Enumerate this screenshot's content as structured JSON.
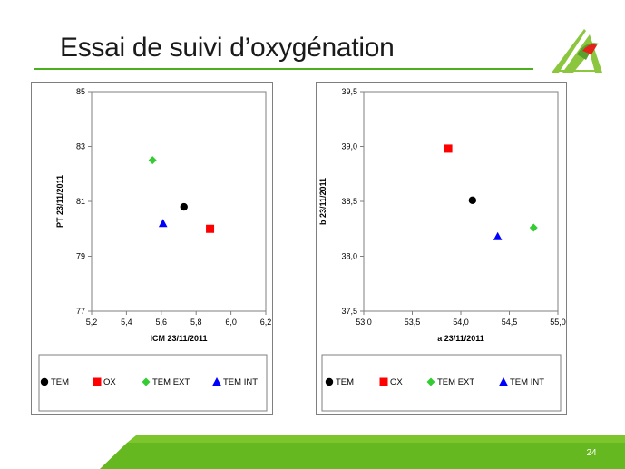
{
  "slide": {
    "title": "Essai de suivi d’oxygénation",
    "page_number": "24",
    "colors": {
      "accent_green": "#4caf1f",
      "logo_green": "#8cc63f",
      "logo_red": "#e2231a"
    }
  },
  "chart_data": [
    {
      "type": "scatter",
      "xlabel": "ICM 23/11/2011",
      "ylabel": "PT 23/11/2011",
      "xlim": [
        5.2,
        6.2
      ],
      "ylim": [
        77,
        85
      ],
      "x_ticks": [
        "5,2",
        "5,4",
        "5,6",
        "5,8",
        "6,0",
        "6,2"
      ],
      "y_ticks": [
        "77",
        "79",
        "81",
        "83",
        "85"
      ],
      "legend_position": "bottom",
      "series": [
        {
          "name": "TEM",
          "marker": "circle",
          "color": "#000000",
          "x": 5.73,
          "y": 80.8
        },
        {
          "name": "OX",
          "marker": "square",
          "color": "#ff0000",
          "x": 5.88,
          "y": 80.0
        },
        {
          "name": "TEM EXT",
          "marker": "diamond",
          "color": "#33cc33",
          "x": 5.55,
          "y": 82.5
        },
        {
          "name": "TEM INT",
          "marker": "triangle",
          "color": "#0000ff",
          "x": 5.61,
          "y": 80.2
        }
      ]
    },
    {
      "type": "scatter",
      "xlabel": "a 23/11/2011",
      "ylabel": "b 23/11/2011",
      "xlim": [
        53.0,
        55.0
      ],
      "ylim": [
        37.5,
        39.5
      ],
      "x_ticks": [
        "53,0",
        "53,5",
        "54,0",
        "54,5",
        "55,0"
      ],
      "y_ticks": [
        "37,5",
        "38,0",
        "38,5",
        "39,0",
        "39,5"
      ],
      "legend_position": "bottom",
      "series": [
        {
          "name": "TEM",
          "marker": "circle",
          "color": "#000000",
          "x": 54.12,
          "y": 38.51
        },
        {
          "name": "OX",
          "marker": "square",
          "color": "#ff0000",
          "x": 53.87,
          "y": 38.98
        },
        {
          "name": "TEM EXT",
          "marker": "diamond",
          "color": "#33cc33",
          "x": 54.75,
          "y": 38.26
        },
        {
          "name": "TEM INT",
          "marker": "triangle",
          "color": "#0000ff",
          "x": 54.38,
          "y": 38.18
        }
      ]
    }
  ]
}
